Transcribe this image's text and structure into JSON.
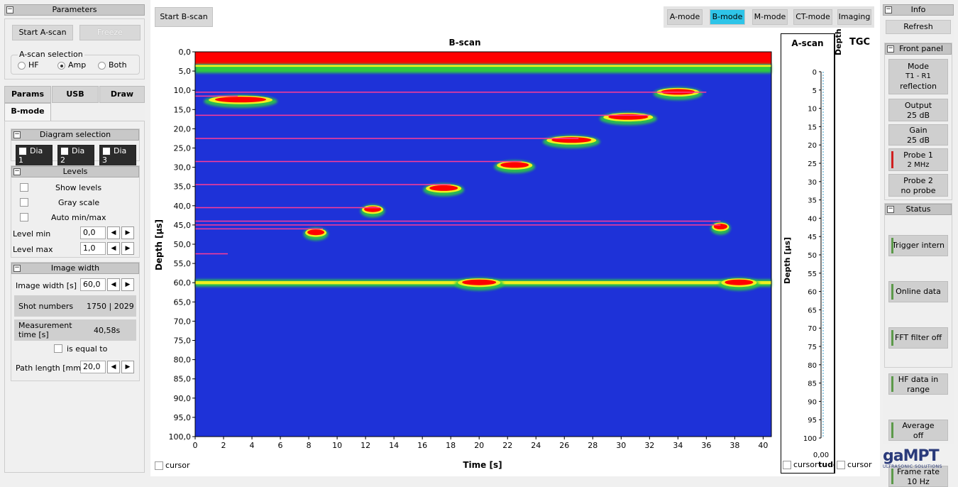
{
  "parameters": {
    "title": "Parameters",
    "start_ascan": "Start A-scan",
    "freeze": "Freeze",
    "ascan_selection": "A-scan selection",
    "radio": [
      {
        "label": "HF",
        "selected": false
      },
      {
        "label": "Amp",
        "selected": true
      },
      {
        "label": "Both",
        "selected": false
      }
    ]
  },
  "tabs": [
    {
      "label": "Params"
    },
    {
      "label": "USB"
    },
    {
      "label": "Draw"
    },
    {
      "label": "B-mode"
    }
  ],
  "diagram": {
    "title": "Diagram selection",
    "items": [
      {
        "label": "Dia 1",
        "checked": true
      },
      {
        "label": "Dia 2",
        "checked": true
      },
      {
        "label": "Dia 3",
        "checked": true
      }
    ]
  },
  "levels": {
    "title": "Levels",
    "show_levels": "Show levels",
    "gray_scale": "Gray scale",
    "auto_minmax": "Auto min/max",
    "level_min_label": "Level min",
    "level_min": "0,0",
    "level_max_label": "Level max",
    "level_max": "1,0"
  },
  "image_width": {
    "title": "Image width",
    "label": "Image width [s]",
    "value": "60,0",
    "shot_label": "Shot numbers",
    "shot_value": "1750 | 2029",
    "meas_label": "Measurement time [s]",
    "meas_value": "40,58s",
    "equal_label": "is equal to",
    "path_label": "Path length [mm]",
    "path_value": "20,0"
  },
  "toolbar": {
    "start_bscan": "Start B-scan",
    "modes": [
      {
        "label": "A-mode",
        "active": false
      },
      {
        "label": "B-mode",
        "active": true
      },
      {
        "label": "M-mode",
        "active": false
      },
      {
        "label": "CT-mode",
        "active": false
      },
      {
        "label": "Imaging",
        "active": false
      }
    ]
  },
  "chart_data": {
    "type": "heatmap",
    "title": "B-scan",
    "xlabel": "Time [s]",
    "ylabel": "Depth [µs]",
    "xlim": [
      0,
      40.58
    ],
    "ylim": [
      0,
      100
    ],
    "x_ticks": [
      0,
      2,
      4,
      6,
      8,
      10,
      12,
      14,
      16,
      18,
      20,
      22,
      24,
      26,
      28,
      30,
      32,
      34,
      36,
      38,
      40
    ],
    "y_ticks": [
      "0,0",
      "5,0",
      "10,0",
      "15,0",
      "20,0",
      "25,0",
      "30,0",
      "35,0",
      "40,0",
      "45,0",
      "50,0",
      "55,0",
      "60,0",
      "65,0",
      "70,0",
      "75,0",
      "80,0",
      "85,0",
      "90,0",
      "95,0",
      "100,0"
    ],
    "colors": {
      "background": "#1e32d8",
      "mid": "#2ecc40",
      "high": "#f0f020",
      "peak": "#ff0000",
      "marker": "#ff3c96"
    },
    "bands": [
      {
        "depth": 0,
        "x0": 0,
        "x1": 40.58,
        "level": "peak"
      },
      {
        "depth": 4.5,
        "x0": 0,
        "x1": 40.58,
        "level": "mid"
      },
      {
        "depth": 60,
        "x0": 0,
        "x1": 40.58,
        "level": "mid"
      }
    ],
    "reflections": [
      {
        "x": 3.2,
        "depth": 12.5,
        "width": 4.5
      },
      {
        "x": 34,
        "depth": 10.5,
        "width": 3
      },
      {
        "x": 30.5,
        "depth": 17,
        "width": 3.5
      },
      {
        "x": 26.5,
        "depth": 23,
        "width": 3.5
      },
      {
        "x": 22.5,
        "depth": 29.5,
        "width": 2.5
      },
      {
        "x": 17.5,
        "depth": 35.5,
        "width": 2.5
      },
      {
        "x": 12.5,
        "depth": 41,
        "width": 1.5
      },
      {
        "x": 8.5,
        "depth": 47,
        "width": 1.5
      },
      {
        "x": 37,
        "depth": 45.5,
        "width": 1.2
      },
      {
        "x": 38.3,
        "depth": 60,
        "width": 2.5
      },
      {
        "x": 20,
        "depth": 60,
        "width": 3
      }
    ],
    "markers": [
      {
        "depth": 10.5,
        "x1": 36
      },
      {
        "depth": 11.5,
        "x1": 3
      },
      {
        "depth": 16.5,
        "x1": 32
      },
      {
        "depth": 22.5,
        "x1": 27
      },
      {
        "depth": 28.5,
        "x1": 23
      },
      {
        "depth": 34.5,
        "x1": 18
      },
      {
        "depth": 40.5,
        "x1": 13
      },
      {
        "depth": 44,
        "x1": 37
      },
      {
        "depth": 45,
        "x1": 37
      },
      {
        "depth": 46,
        "x1": 9
      },
      {
        "depth": 52.5,
        "x1": 2.3
      }
    ]
  },
  "ascan": {
    "title": "A-scan",
    "ylabel": "Depth [µs]",
    "y_ticks": [
      "0",
      "5",
      "10",
      "15",
      "20",
      "25",
      "30",
      "35",
      "40",
      "45",
      "50",
      "55",
      "60",
      "65",
      "70",
      "75",
      "80",
      "85",
      "90",
      "95",
      "100"
    ],
    "x_value": "0,00",
    "cursor": "cursor",
    "tude": "tude"
  },
  "tgc": {
    "title": "TGC",
    "depth": "Depth",
    "cursor": "cursor"
  },
  "bscan_cursor": "cursor",
  "info": {
    "title": "Info",
    "refresh": "Refresh",
    "front_panel": "Front panel",
    "items": [
      {
        "line1": "Mode",
        "line2": "T1 - R1",
        "line3": "reflection"
      },
      {
        "line1": "Output",
        "line2": "25 dB"
      },
      {
        "line1": "Gain",
        "line2": "25 dB"
      },
      {
        "line1": "Probe 1",
        "line2": "2 MHz"
      },
      {
        "line1": "Probe 2",
        "line2": "no probe"
      }
    ],
    "status_title": "Status",
    "status": [
      {
        "line1": "Trigger intern",
        "line2": ""
      },
      {
        "line1": "Online data",
        "line2": ""
      },
      {
        "line1": "FFT filter off",
        "line2": ""
      },
      {
        "line1": "HF data in",
        "line2": "range"
      },
      {
        "line1": "Average",
        "line2": "off"
      },
      {
        "line1": "Frame rate",
        "line2": "10 Hz"
      }
    ]
  },
  "logo": {
    "name": "gaMPT",
    "tagline": "ULTRASONIC SOLUTIONS"
  }
}
